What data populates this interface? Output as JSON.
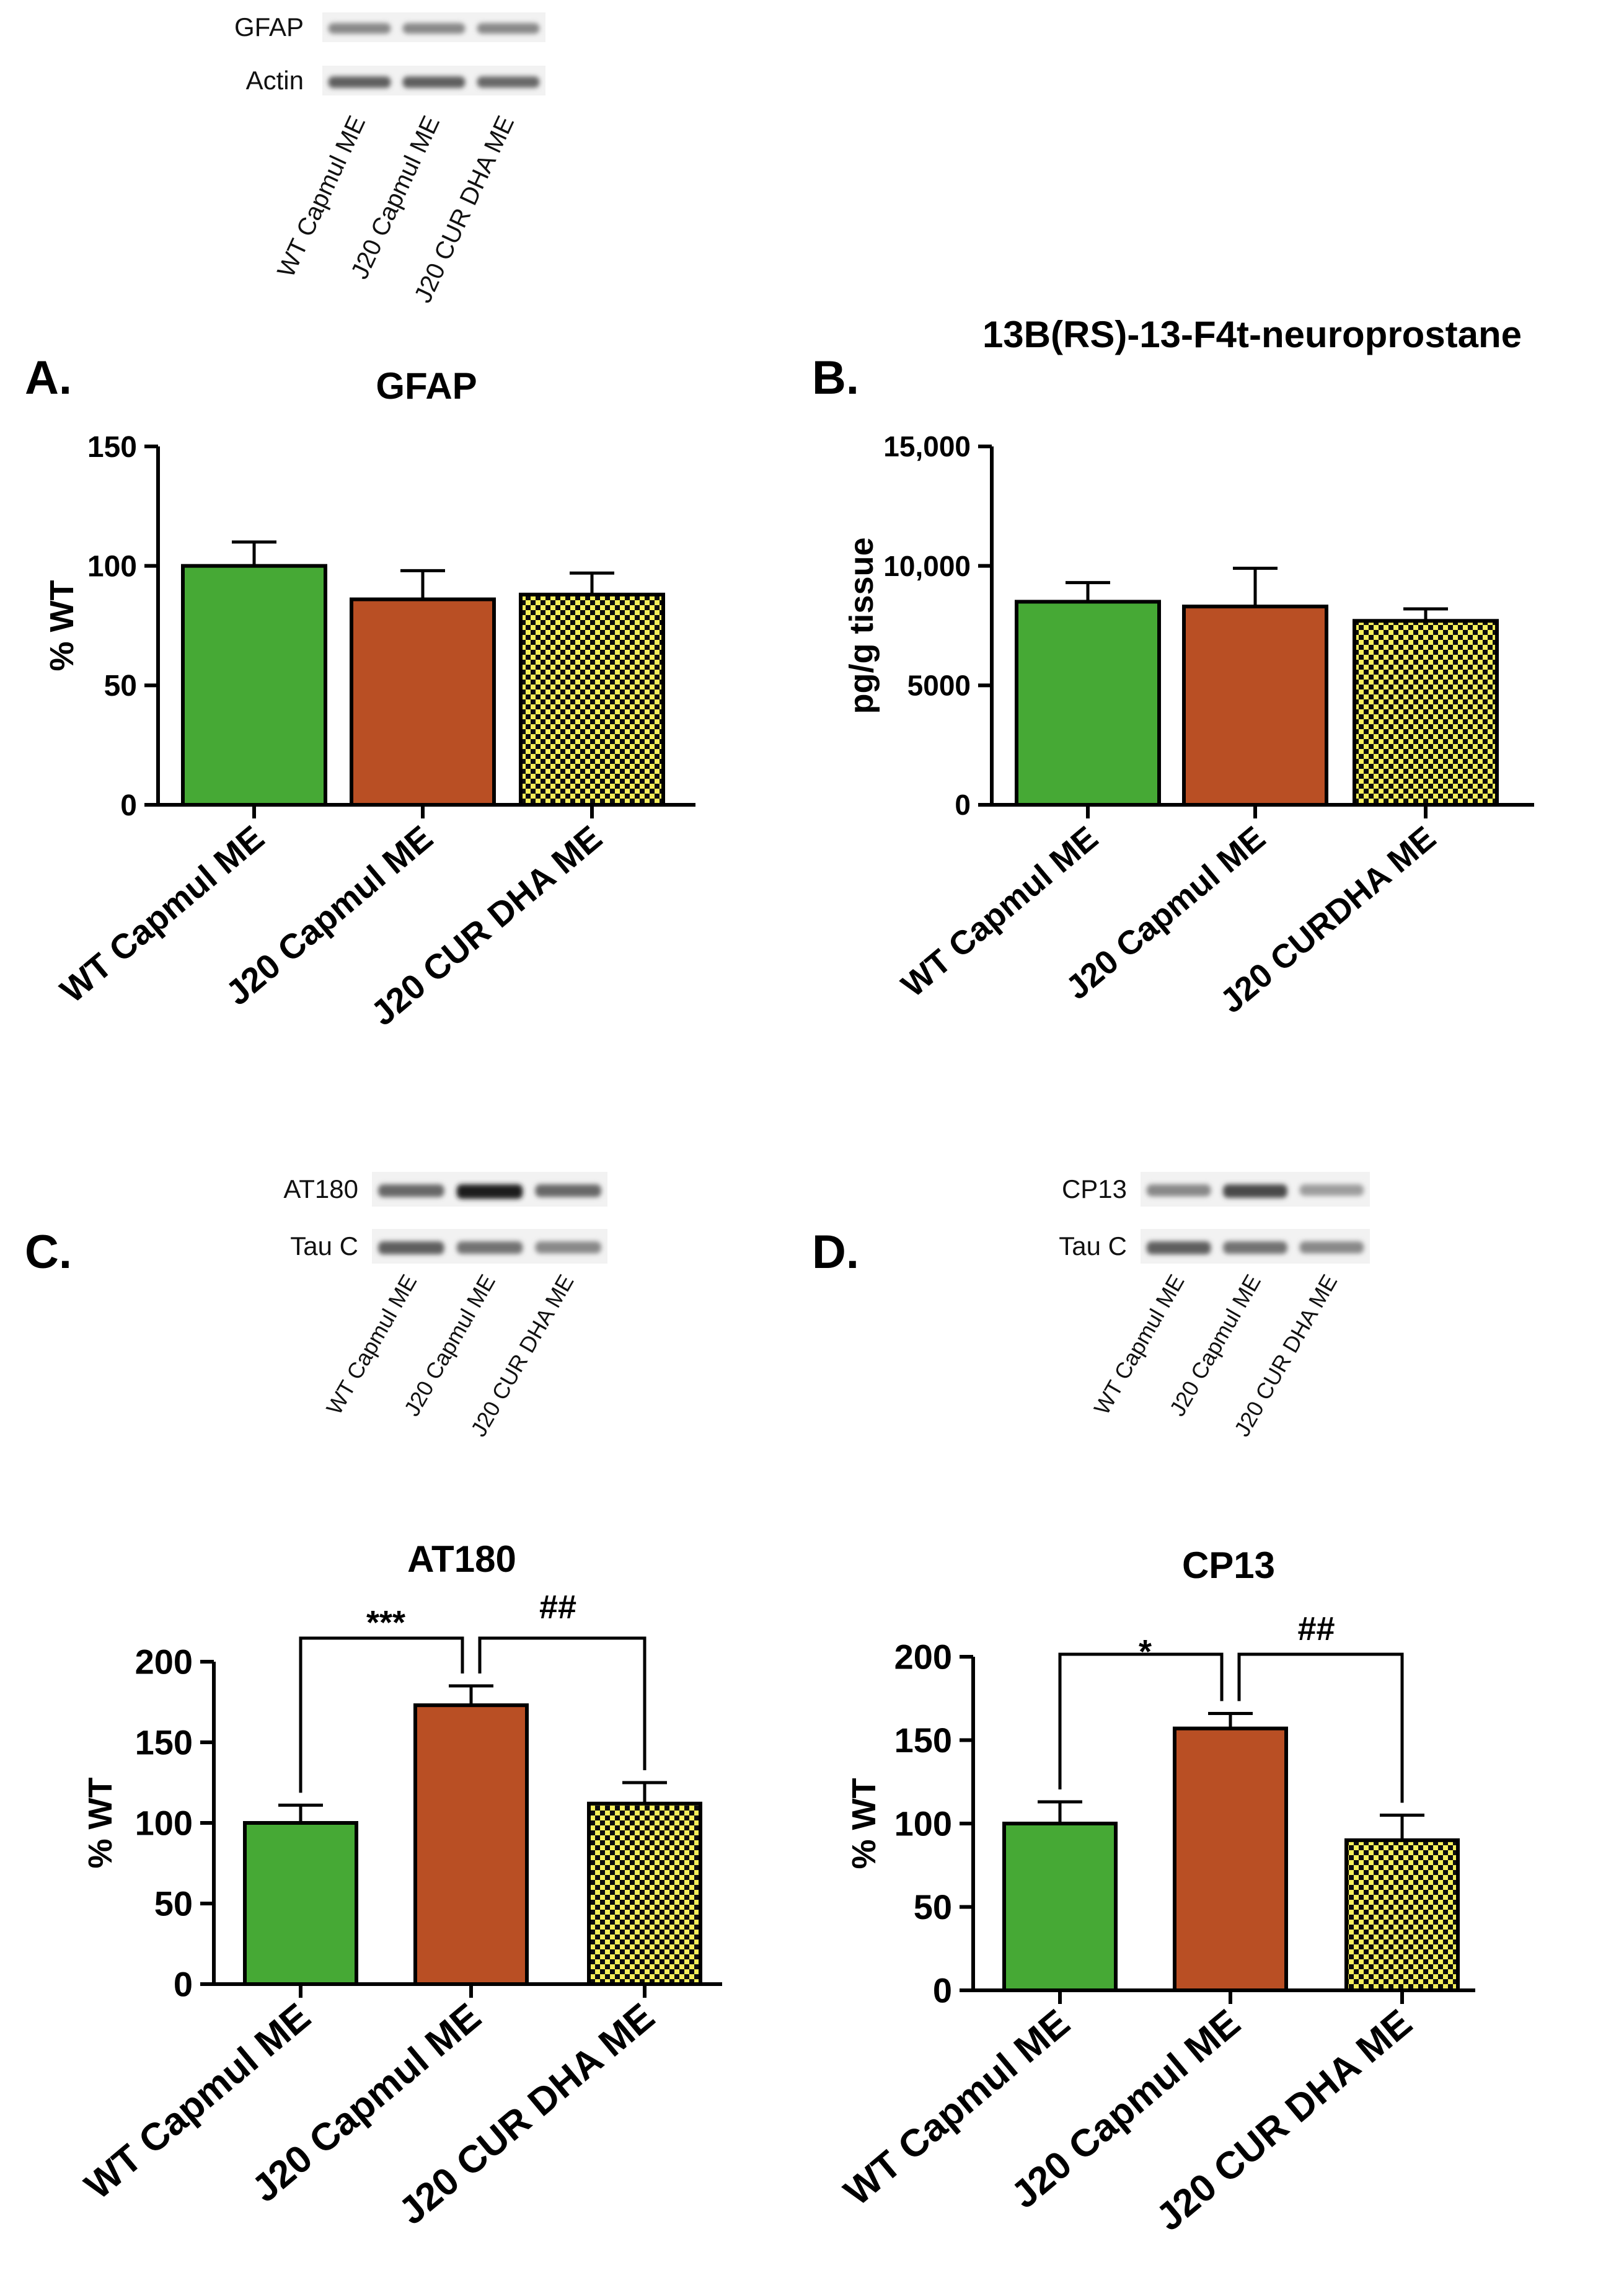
{
  "panel_labels": [
    "A.",
    "B.",
    "C.",
    "D."
  ],
  "colors": {
    "wt": "#46a935",
    "j20": "#b94f24",
    "cur_dha_fill": "#f5ef5a",
    "cur_dha_check": "#0d0d0d",
    "axis": "#000000"
  },
  "blots": [
    {
      "rows": [
        "GFAP",
        "Actin"
      ],
      "lanes": [
        "WT Capmul ME",
        "J20 Capmul ME",
        "J20 CUR DHA ME"
      ],
      "band_intensity": [
        [
          0.45,
          0.45,
          0.45
        ],
        [
          0.65,
          0.65,
          0.6
        ]
      ]
    },
    {
      "rows": [
        "AT180",
        "Tau C"
      ],
      "lanes": [
        "WT Capmul ME",
        "J20 Capmul ME",
        "J20 CUR DHA ME"
      ],
      "band_intensity": [
        [
          0.6,
          0.95,
          0.6
        ],
        [
          0.65,
          0.55,
          0.45
        ]
      ]
    },
    {
      "rows": [
        "CP13",
        "Tau C"
      ],
      "lanes": [
        "WT Capmul ME",
        "J20 Capmul ME",
        "J20 CUR DHA ME"
      ],
      "band_intensity": [
        [
          0.45,
          0.75,
          0.35
        ],
        [
          0.65,
          0.55,
          0.45
        ]
      ]
    }
  ],
  "chart_data": [
    {
      "panel": "A.",
      "type": "bar",
      "title": "GFAP",
      "ylabel": "% WT",
      "categories": [
        "WT Capmul ME",
        "J20 Capmul ME",
        "J20 CUR DHA ME"
      ],
      "values": [
        100,
        86,
        88
      ],
      "errors": [
        10,
        12,
        9
      ],
      "ylim": [
        0,
        150
      ],
      "yticks": [
        "0",
        "50",
        "100",
        "150"
      ],
      "significance": []
    },
    {
      "panel": "B.",
      "type": "bar",
      "title": "13B(RS)-13-F4t-neuroprostane",
      "ylabel": "pg/g tissue",
      "categories": [
        "WT Capmul ME",
        "J20 Capmul ME",
        "J20 CURDHA ME"
      ],
      "values": [
        8500,
        8300,
        7700
      ],
      "errors": [
        800,
        1600,
        500
      ],
      "ylim": [
        0,
        15000
      ],
      "yticks": [
        "0",
        "5000",
        "10,000",
        "15,000"
      ],
      "significance": []
    },
    {
      "panel": "C.",
      "type": "bar",
      "title": "AT180",
      "ylabel": "% WT",
      "categories": [
        "WT Capmul ME",
        "J20 Capmul ME",
        "J20 CUR DHA ME"
      ],
      "values": [
        100,
        173,
        112
      ],
      "errors": [
        11,
        12,
        13
      ],
      "ylim": [
        0,
        200
      ],
      "yticks": [
        "0",
        "50",
        "100",
        "150",
        "200"
      ],
      "significance": [
        {
          "from": 0,
          "to": 1,
          "label": "***"
        },
        {
          "from": 1,
          "to": 2,
          "label": "##"
        }
      ]
    },
    {
      "panel": "D.",
      "type": "bar",
      "title": "CP13",
      "ylabel": "% WT",
      "categories": [
        "WT Capmul ME",
        "J20 Capmul ME",
        "J20 CUR DHA ME"
      ],
      "values": [
        100,
        157,
        90
      ],
      "errors": [
        13,
        9,
        15
      ],
      "ylim": [
        0,
        200
      ],
      "yticks": [
        "0",
        "50",
        "100",
        "150",
        "200"
      ],
      "significance": [
        {
          "from": 0,
          "to": 1,
          "label": "*"
        },
        {
          "from": 1,
          "to": 2,
          "label": "##"
        }
      ]
    }
  ]
}
